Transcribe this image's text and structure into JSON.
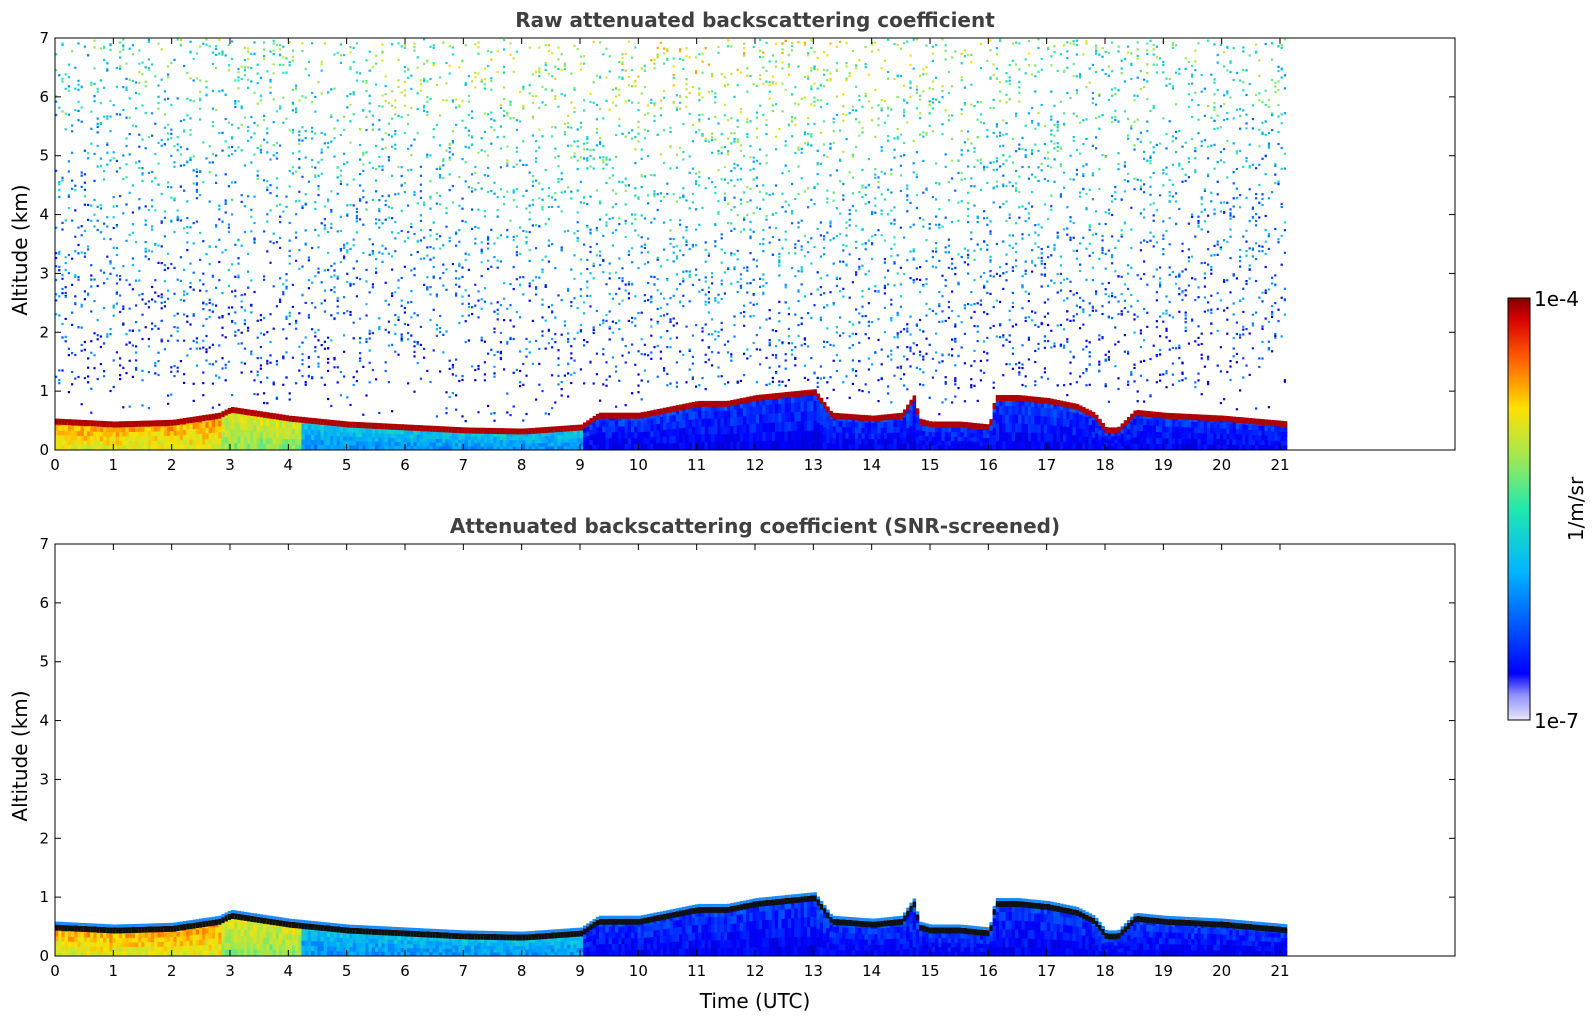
{
  "chart_data": [
    {
      "type": "heatmap",
      "title": "Raw attenuated backscattering coefficient",
      "xlabel": "",
      "ylabel": "Altitude (km)",
      "xlim": [
        0,
        24
      ],
      "ylim": [
        0,
        7
      ],
      "xticks": [
        0,
        1,
        2,
        3,
        4,
        5,
        6,
        7,
        8,
        9,
        10,
        11,
        12,
        13,
        14,
        15,
        16,
        17,
        18,
        19,
        20,
        21
      ],
      "yticks": [
        0,
        1,
        2,
        3,
        4,
        5,
        6,
        7
      ],
      "data_end_time": 21.15,
      "screened": false,
      "layer_top_km": [
        [
          0,
          0.5
        ],
        [
          1,
          0.45
        ],
        [
          2,
          0.48
        ],
        [
          2.8,
          0.6
        ],
        [
          3,
          0.7
        ],
        [
          4,
          0.55
        ],
        [
          5,
          0.45
        ],
        [
          6,
          0.4
        ],
        [
          7,
          0.35
        ],
        [
          8,
          0.33
        ],
        [
          9,
          0.4
        ],
        [
          9.3,
          0.6
        ],
        [
          10,
          0.6
        ],
        [
          10.5,
          0.7
        ],
        [
          11,
          0.8
        ],
        [
          11.5,
          0.8
        ],
        [
          12,
          0.9
        ],
        [
          12.5,
          0.95
        ],
        [
          13,
          1.0
        ],
        [
          13.3,
          0.6
        ],
        [
          14,
          0.55
        ],
        [
          14.5,
          0.6
        ],
        [
          14.7,
          0.9
        ],
        [
          14.8,
          0.5
        ],
        [
          15,
          0.45
        ],
        [
          15.5,
          0.45
        ],
        [
          16,
          0.4
        ],
        [
          16.1,
          0.9
        ],
        [
          16.5,
          0.9
        ],
        [
          17,
          0.85
        ],
        [
          17.5,
          0.75
        ],
        [
          17.8,
          0.6
        ],
        [
          18,
          0.35
        ],
        [
          18.2,
          0.35
        ],
        [
          18.5,
          0.65
        ],
        [
          19,
          0.6
        ],
        [
          20,
          0.55
        ],
        [
          21.15,
          0.45
        ]
      ]
    },
    {
      "type": "heatmap",
      "title": "Attenuated backscattering coefficient (SNR-screened)",
      "xlabel": "Time (UTC)",
      "ylabel": "Altitude (km)",
      "xlim": [
        0,
        24
      ],
      "ylim": [
        0,
        7
      ],
      "xticks": [
        0,
        1,
        2,
        3,
        4,
        5,
        6,
        7,
        8,
        9,
        10,
        11,
        12,
        13,
        14,
        15,
        16,
        17,
        18,
        19,
        20,
        21
      ],
      "yticks": [
        0,
        1,
        2,
        3,
        4,
        5,
        6,
        7
      ],
      "data_end_time": 21.15,
      "screened": true
    }
  ],
  "colorbar": {
    "label": "1/m/sr",
    "max_label": "1e-4",
    "min_label": "1e-7",
    "scale": "log",
    "range": [
      1e-07,
      0.0001
    ],
    "colormap": "jet"
  }
}
